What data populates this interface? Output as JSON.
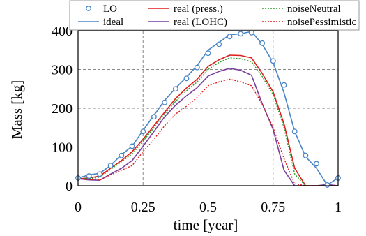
{
  "chart_data": {
    "type": "line",
    "xlabel": "time [year]",
    "ylabel": "Mass [kg]",
    "xlim": [
      0,
      1
    ],
    "ylim": [
      0,
      400
    ],
    "xticks": [
      0,
      0.25,
      0.5,
      0.75,
      1
    ],
    "xtick_labels": [
      "0",
      "0.25",
      "0.5",
      "0.75",
      "1"
    ],
    "yticks": [
      0,
      100,
      200,
      300,
      400
    ],
    "ytick_labels": [
      "0",
      "100",
      "200",
      "300",
      "400"
    ],
    "grid": true,
    "legend_position": "top",
    "series": [
      {
        "name": "LO",
        "style": "markers",
        "color": "#4a86c5",
        "x": [
          0,
          0.042,
          0.083,
          0.125,
          0.167,
          0.208,
          0.25,
          0.292,
          0.333,
          0.375,
          0.417,
          0.458,
          0.5,
          0.542,
          0.583,
          0.625,
          0.667,
          0.708,
          0.75,
          0.792,
          0.833,
          0.875,
          0.917,
          0.958,
          1
        ],
        "values": [
          20,
          25,
          30,
          52,
          78,
          102,
          140,
          178,
          215,
          250,
          277,
          305,
          342,
          365,
          385,
          392,
          395,
          368,
          322,
          260,
          140,
          78,
          57,
          2,
          20
        ]
      },
      {
        "name": "ideal",
        "style": "solid",
        "color": "#4a86c5",
        "x": [
          0,
          0.042,
          0.083,
          0.125,
          0.167,
          0.208,
          0.25,
          0.292,
          0.333,
          0.375,
          0.417,
          0.458,
          0.5,
          0.542,
          0.583,
          0.625,
          0.667,
          0.708,
          0.75,
          0.792,
          0.833,
          0.875,
          0.917,
          0.958,
          1
        ],
        "values": [
          20,
          28,
          32,
          52,
          80,
          102,
          143,
          182,
          220,
          252,
          280,
          310,
          350,
          370,
          390,
          392,
          398,
          365,
          318,
          240,
          140,
          75,
          45,
          2,
          20
        ]
      },
      {
        "name": "real (press.)",
        "style": "solid",
        "color": "#dd1c1c",
        "x": [
          0,
          0.042,
          0.083,
          0.125,
          0.167,
          0.208,
          0.25,
          0.292,
          0.333,
          0.375,
          0.417,
          0.458,
          0.5,
          0.542,
          0.583,
          0.625,
          0.667,
          0.708,
          0.75,
          0.792,
          0.833,
          0.875,
          0.917,
          0.958,
          1
        ],
        "values": [
          18,
          20,
          25,
          45,
          65,
          88,
          120,
          155,
          190,
          225,
          252,
          275,
          308,
          325,
          337,
          336,
          330,
          290,
          242,
          160,
          45,
          0,
          0,
          0,
          0
        ]
      },
      {
        "name": "real (LOHC)",
        "style": "solid",
        "color": "#7b3f9e",
        "x": [
          0,
          0.042,
          0.083,
          0.125,
          0.167,
          0.208,
          0.25,
          0.292,
          0.333,
          0.375,
          0.417,
          0.458,
          0.5,
          0.542,
          0.583,
          0.625,
          0.667,
          0.708,
          0.75,
          0.792,
          0.833,
          0.875,
          0.917,
          0.958,
          1
        ],
        "values": [
          18,
          15,
          14,
          30,
          45,
          65,
          102,
          140,
          178,
          208,
          232,
          253,
          283,
          295,
          303,
          298,
          285,
          212,
          145,
          40,
          0,
          0,
          0,
          3,
          0
        ]
      },
      {
        "name": "noiseNeutral",
        "style": "dotted",
        "color": "#2ca02c",
        "x": [
          0,
          0.042,
          0.083,
          0.125,
          0.167,
          0.208,
          0.25,
          0.292,
          0.333,
          0.375,
          0.417,
          0.458,
          0.5,
          0.542,
          0.583,
          0.625,
          0.667,
          0.708,
          0.75,
          0.792,
          0.833,
          0.875,
          0.917,
          0.958,
          1
        ],
        "values": [
          18,
          18,
          22,
          42,
          62,
          82,
          115,
          150,
          185,
          218,
          245,
          268,
          300,
          318,
          330,
          328,
          320,
          282,
          235,
          150,
          30,
          0,
          0,
          0,
          0
        ]
      },
      {
        "name": "noisePessimistic",
        "style": "dotted",
        "color": "#dd1c1c",
        "x": [
          0,
          0.042,
          0.083,
          0.125,
          0.167,
          0.208,
          0.25,
          0.292,
          0.333,
          0.375,
          0.417,
          0.458,
          0.5,
          0.542,
          0.583,
          0.625,
          0.667,
          0.708,
          0.75,
          0.792,
          0.833,
          0.875,
          0.917,
          0.958,
          1
        ],
        "values": [
          18,
          16,
          15,
          28,
          40,
          52,
          88,
          120,
          155,
          185,
          205,
          228,
          258,
          268,
          275,
          268,
          258,
          210,
          150,
          70,
          5,
          0,
          0,
          0,
          0
        ]
      }
    ]
  }
}
